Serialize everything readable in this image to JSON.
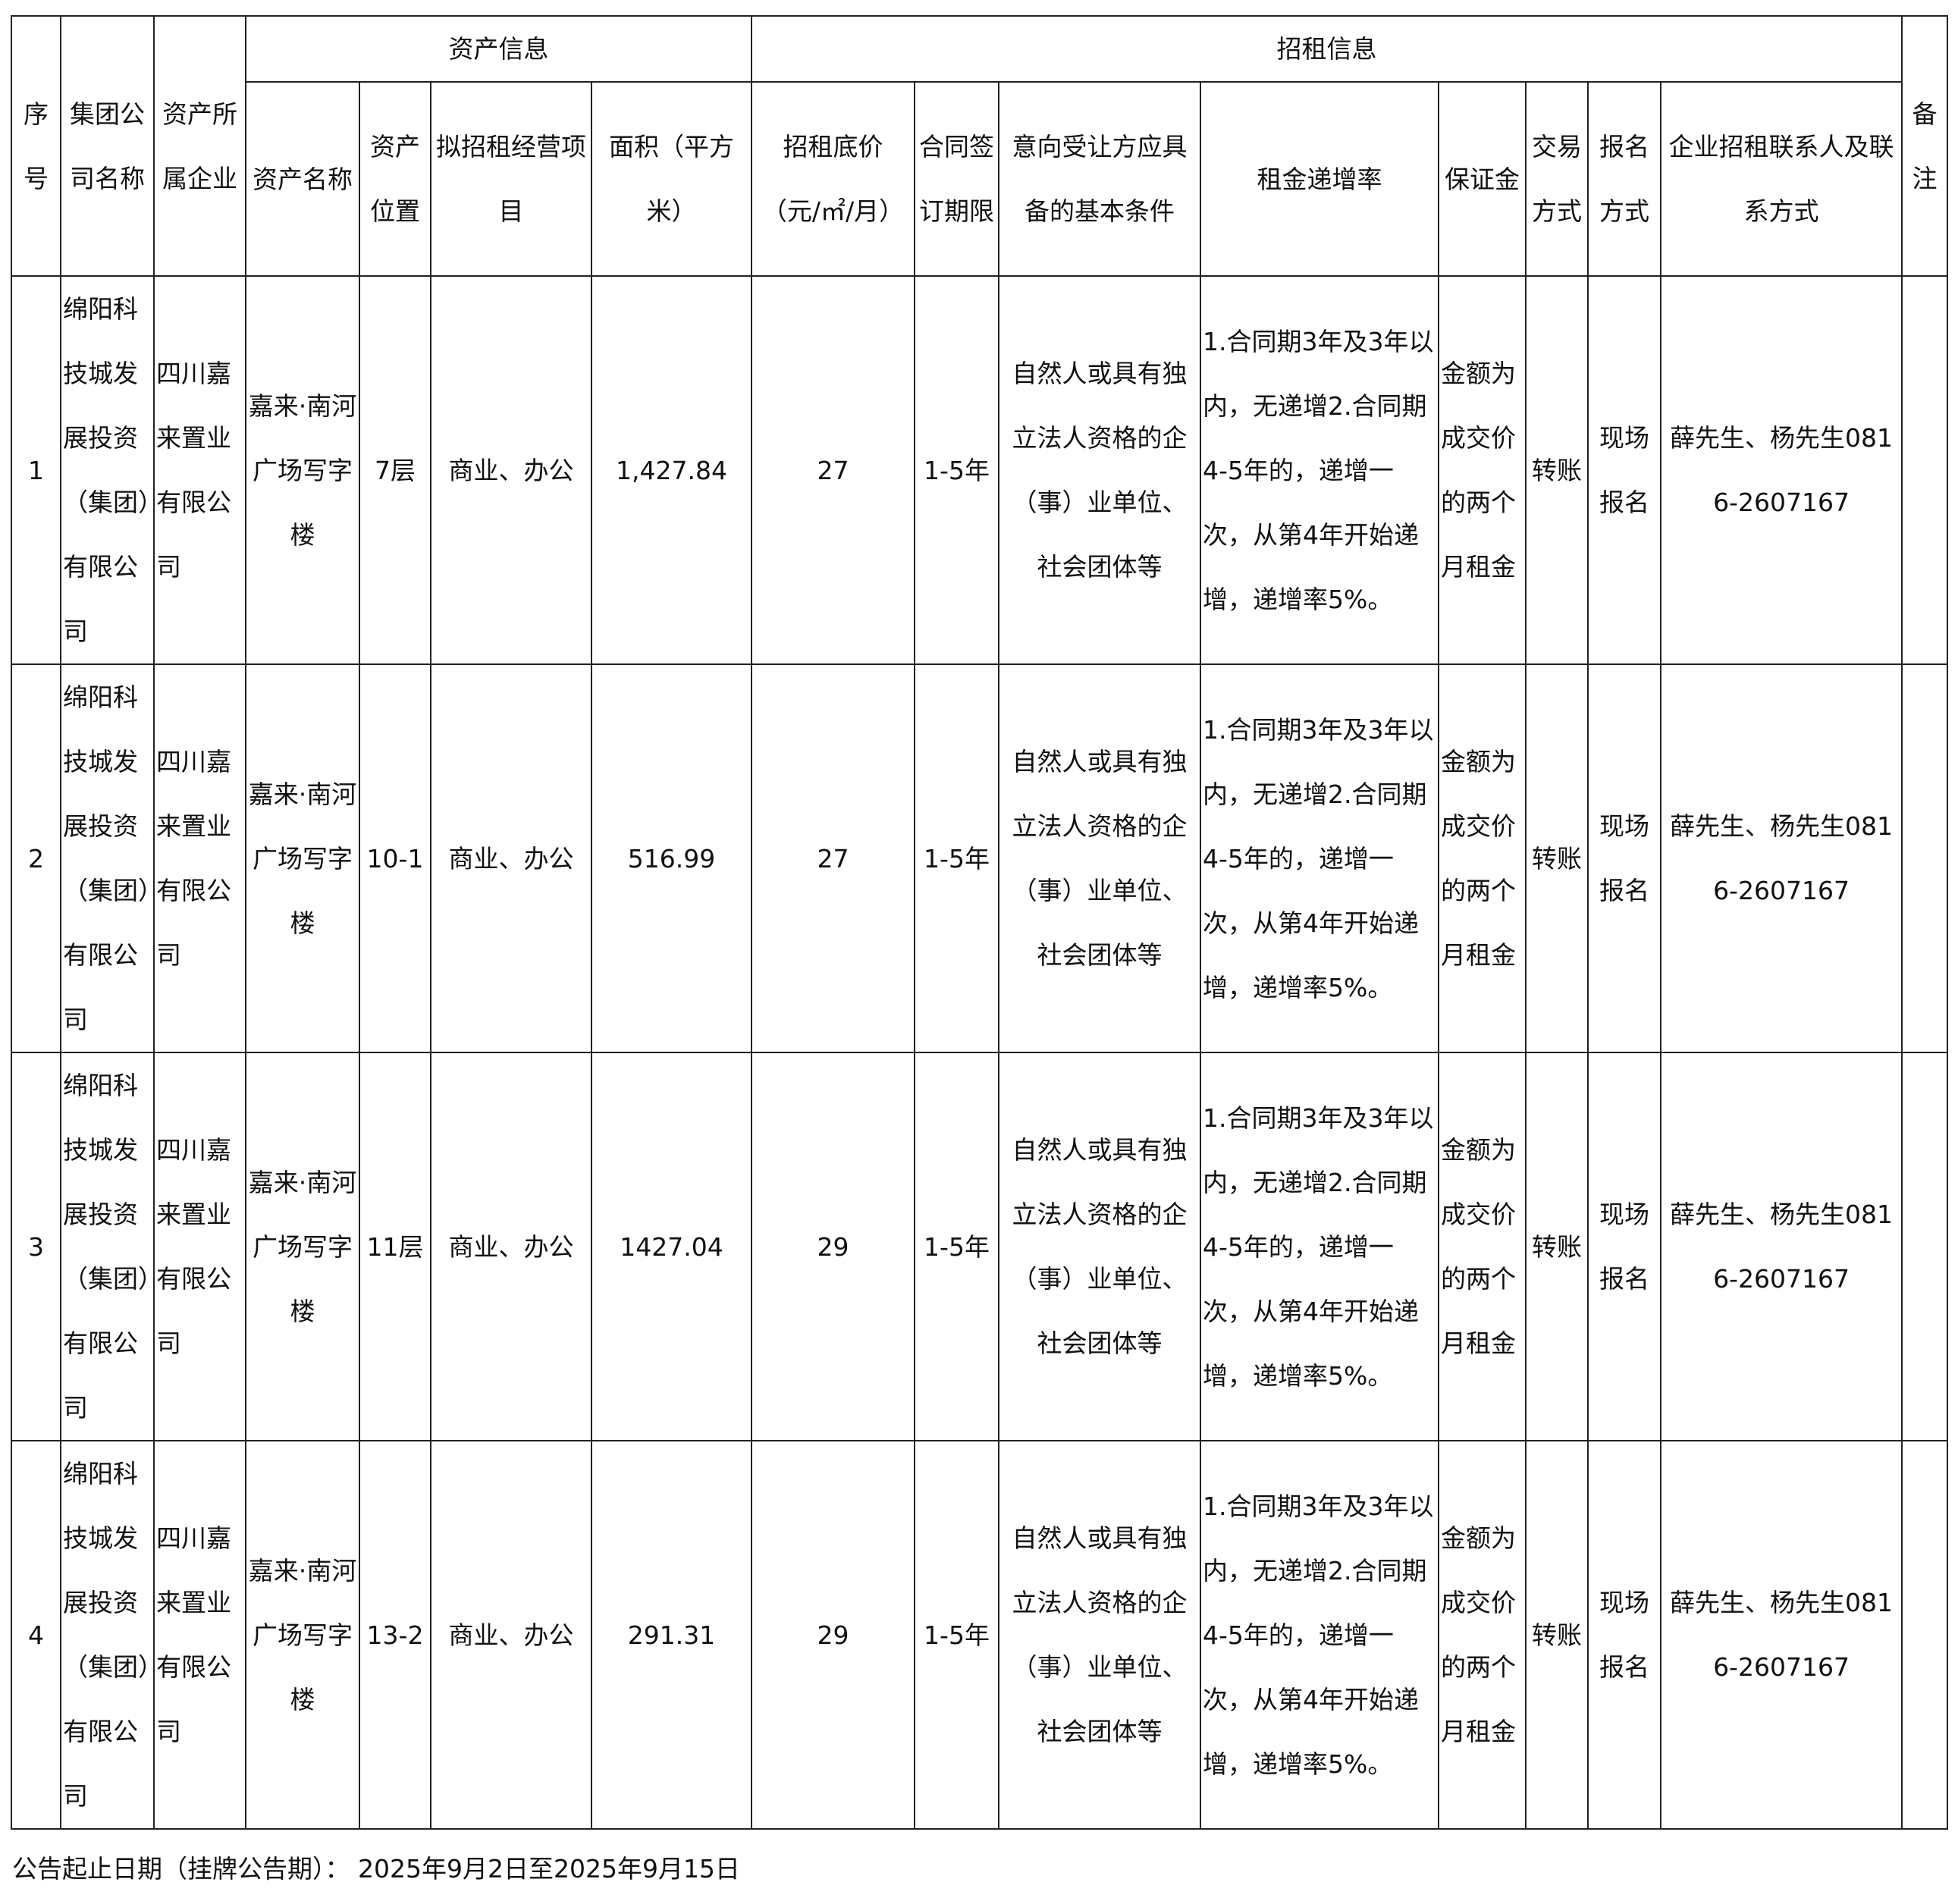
{
  "headers": {
    "seq": "序号",
    "group_company": "集团公司名称",
    "owner_company": "资产所属企业",
    "asset_info": "资产信息",
    "lease_info": "招租信息",
    "remarks": "备注",
    "asset_name": "资产名称",
    "asset_location": "资产位置",
    "business_item": "拟招租经营项目",
    "area": "面积（平方米）",
    "base_price": "招租底价（元/㎡/月）",
    "contract_term": "合同签订期限",
    "conditions": "意向受让方应具备的基本条件",
    "rent_increase": "租金递增率",
    "deposit": "保证金",
    "transaction_method": "交易方式",
    "registration_method": "报名方式",
    "contact": "企业招租联系人及联系方式"
  },
  "rows": [
    {
      "seq": "1",
      "group_company": "绵阳科技城发展投资（集团）有限公司",
      "owner_company": "四川嘉来置业有限公司",
      "asset_name": "嘉来·南河广场写字楼",
      "asset_location": "7层",
      "business_item": "商业、办公",
      "area": "1,427.84",
      "base_price": "27",
      "contract_term": "1-5年",
      "conditions": "自然人或具有独立法人资格的企（事）业单位、社会团体等",
      "rent_increase": "1.合同期3年及3年以内，无递增2.合同期4-5年的，递增一次，从第4年开始递增，递增率5%。",
      "deposit": "金额为成交价的两个月租金",
      "transaction_method": "转账",
      "registration_method": "现场报名",
      "contact": "薛先生、杨先生0816-2607167",
      "remarks": ""
    },
    {
      "seq": "2",
      "group_company": "绵阳科技城发展投资（集团）有限公司",
      "owner_company": "四川嘉来置业有限公司",
      "asset_name": "嘉来·南河广场写字楼",
      "asset_location": "10-1",
      "business_item": "商业、办公",
      "area": "516.99",
      "base_price": "27",
      "contract_term": "1-5年",
      "conditions": "自然人或具有独立法人资格的企（事）业单位、社会团体等",
      "rent_increase": "1.合同期3年及3年以内，无递增2.合同期4-5年的，递增一次，从第4年开始递增，递增率5%。",
      "deposit": "金额为成交价的两个月租金",
      "transaction_method": "转账",
      "registration_method": "现场报名",
      "contact": "薛先生、杨先生0816-2607167",
      "remarks": ""
    },
    {
      "seq": "3",
      "group_company": "绵阳科技城发展投资（集团）有限公司",
      "owner_company": "四川嘉来置业有限公司",
      "asset_name": "嘉来·南河广场写字楼",
      "asset_location": "11层",
      "business_item": "商业、办公",
      "area": "1427.04",
      "base_price": "29",
      "contract_term": "1-5年",
      "conditions": "自然人或具有独立法人资格的企（事）业单位、社会团体等",
      "rent_increase": "1.合同期3年及3年以内，无递增2.合同期4-5年的，递增一次，从第4年开始递增，递增率5%。",
      "deposit": "金额为成交价的两个月租金",
      "transaction_method": "转账",
      "registration_method": "现场报名",
      "contact": "薛先生、杨先生0816-2607167",
      "remarks": ""
    },
    {
      "seq": "4",
      "group_company": "绵阳科技城发展投资（集团）有限公司",
      "owner_company": "四川嘉来置业有限公司",
      "asset_name": "嘉来·南河广场写字楼",
      "asset_location": "13-2",
      "business_item": "商业、办公",
      "area": "291.31",
      "base_price": "29",
      "contract_term": "1-5年",
      "conditions": "自然人或具有独立法人资格的企（事）业单位、社会团体等",
      "rent_increase": "1.合同期3年及3年以内，无递增2.合同期4-5年的，递增一次，从第4年开始递增，递增率5%。",
      "deposit": "金额为成交价的两个月租金",
      "transaction_method": "转账",
      "registration_method": "现场报名",
      "contact": "薛先生、杨先生0816-2607167",
      "remarks": ""
    }
  ],
  "footer": "公告起止日期（挂牌公告期）： 2025年9月2日至2025年9月15日"
}
